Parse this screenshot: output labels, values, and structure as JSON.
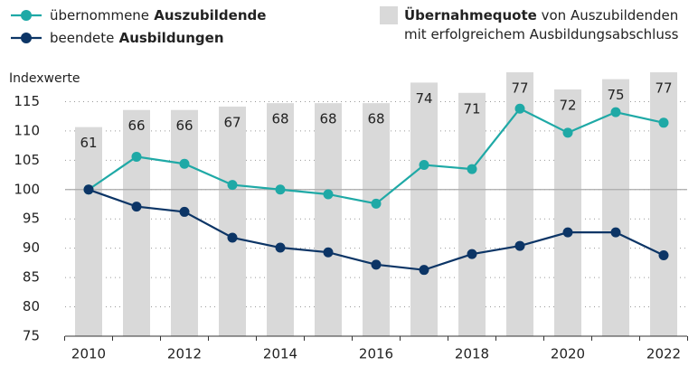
{
  "chart_data": {
    "type": "bar_line",
    "y_axis_label": "Indexwerte",
    "categories": [
      2010,
      null,
      2012,
      null,
      2014,
      null,
      2016,
      null,
      2018,
      null,
      2020,
      null,
      2022
    ],
    "series": [
      {
        "name": "Übernahmequote von Auszubildenden\nmit erfolgreichem Ausbildungsabschluss",
        "type": "bar",
        "axis": "y2",
        "color": "#d9d9d9",
        "values": [
          61,
          66,
          66,
          67,
          68,
          68,
          68,
          74,
          71,
          77,
          72,
          75,
          77
        ]
      },
      {
        "name": "übernommene Auszubildende",
        "type": "line",
        "color": "#1fa9a6",
        "values": [
          100,
          105.6,
          104.4,
          100.8,
          100,
          99.2,
          97.6,
          104.2,
          103.5,
          113.8,
          109.7,
          113.2,
          111.4
        ]
      },
      {
        "name": "beendete Ausbildungen",
        "type": "line",
        "color": "#0c3566",
        "values": [
          100,
          97.1,
          96.2,
          91.8,
          90.1,
          89.3,
          87.2,
          86.3,
          89.0,
          90.4,
          92.7,
          92.7,
          88.8
        ]
      }
    ],
    "ylim": [
      75,
      120
    ],
    "yticks": [
      75,
      80,
      85,
      90,
      95,
      100,
      105,
      110,
      115
    ],
    "y2lim": [
      0,
      77
    ],
    "reference_line": 100,
    "grid": true
  }
}
